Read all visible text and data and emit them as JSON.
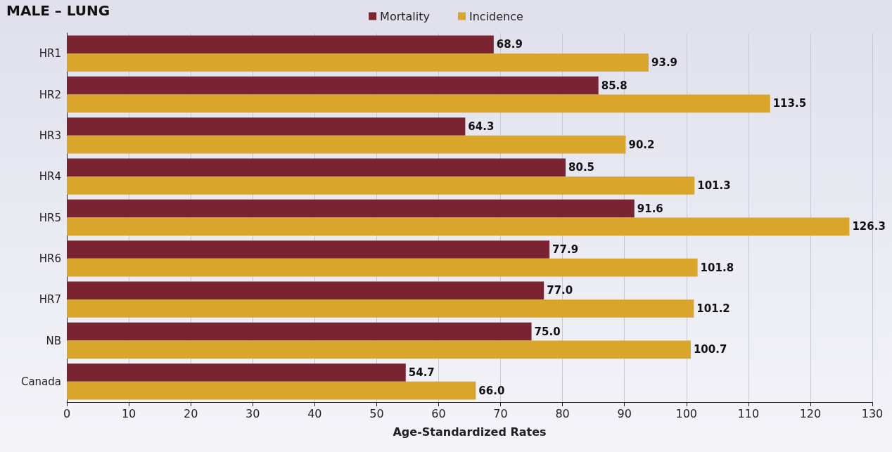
{
  "chart_data": {
    "type": "bar",
    "orientation": "horizontal",
    "title": "MALE – LUNG",
    "xlabel": "Age-Standardized Rates",
    "categories": [
      "HR1",
      "HR2",
      "HR3",
      "HR4",
      "HR5",
      "HR6",
      "HR7",
      "NB",
      "Canada"
    ],
    "series": [
      {
        "name": "Mortality",
        "color": "#7b2431",
        "values": [
          68.9,
          85.8,
          64.3,
          80.5,
          91.6,
          77.9,
          77.0,
          75.0,
          54.7
        ],
        "value_labels": [
          "68.9",
          "85.8",
          "64.3",
          "80.5",
          "91.6",
          "77.9",
          "77.0",
          "75.0",
          "54.7"
        ]
      },
      {
        "name": "Incidence",
        "color": "#d9a52a",
        "values": [
          93.9,
          113.5,
          90.2,
          101.3,
          126.3,
          101.8,
          101.2,
          100.7,
          66.0
        ],
        "value_labels": [
          "93.9",
          "113.5",
          "90.2",
          "101.3",
          "126.3",
          "101.8",
          "101.2",
          "100.7",
          "66.0"
        ]
      }
    ],
    "xlim": [
      0,
      130
    ],
    "xticks": [
      0,
      10,
      20,
      30,
      40,
      50,
      60,
      70,
      80,
      90,
      100,
      110,
      120,
      130
    ],
    "grid": "x",
    "legend": "top"
  }
}
